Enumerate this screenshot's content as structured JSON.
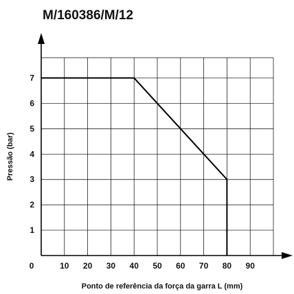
{
  "chart_data": {
    "type": "line",
    "title": "M/160386/M/12",
    "xlabel": "Ponto de referência da força da garra L (mm)",
    "ylabel": "Pressão (bar)",
    "x_ticks": [
      "0",
      "10",
      "20",
      "30",
      "40",
      "50",
      "60",
      "70",
      "80",
      "90"
    ],
    "y_ticks": [
      "1",
      "2",
      "3",
      "4",
      "5",
      "6",
      "7"
    ],
    "xlim": [
      0,
      100
    ],
    "ylim": [
      0,
      7.8
    ],
    "grid": true,
    "series": [
      {
        "x": [
          0,
          40,
          80,
          80
        ],
        "y": [
          7,
          7,
          3,
          0
        ]
      }
    ],
    "colors": {
      "line": "#000000",
      "grid": "#000000",
      "axis": "#000000"
    }
  }
}
